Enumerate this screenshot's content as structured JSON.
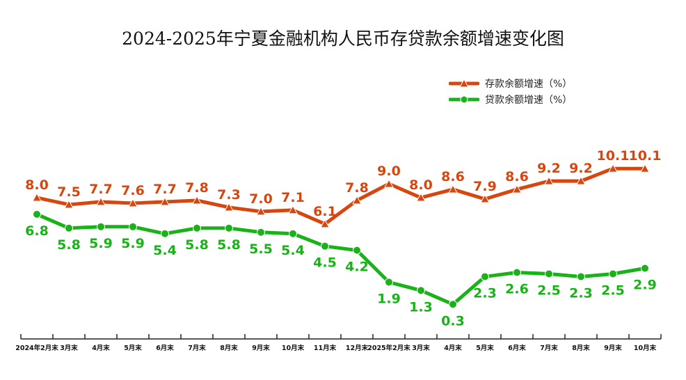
{
  "chart_data": {
    "type": "line",
    "title": "2024-2025年宁夏金融机构人民币存贷款余额增速变化图",
    "categories": [
      "2024年2月末",
      "3月末",
      "4月末",
      "5月末",
      "6月末",
      "7月末",
      "8月末",
      "9月末",
      "10月末",
      "11月末",
      "12月末",
      "2025年2月末",
      "3月末",
      "4月末",
      "5月末",
      "6月末",
      "7月末",
      "8月末",
      "9月末",
      "10月末"
    ],
    "series": [
      {
        "name": "存款余额增速（%）",
        "color": "#d8460f",
        "marker": "triangle",
        "label_position": "above",
        "values": [
          8.0,
          7.5,
          7.7,
          7.6,
          7.7,
          7.8,
          7.3,
          7.0,
          7.1,
          6.1,
          7.8,
          9.0,
          8.0,
          8.6,
          7.9,
          8.6,
          9.2,
          9.2,
          10.1,
          10.1
        ]
      },
      {
        "name": "贷款余额增速（%）",
        "color": "#19b319",
        "marker": "circle",
        "label_position": "below",
        "values": [
          6.8,
          5.8,
          5.9,
          5.9,
          5.4,
          5.8,
          5.8,
          5.5,
          5.4,
          4.5,
          4.2,
          1.9,
          1.3,
          0.3,
          2.3,
          2.6,
          2.5,
          2.3,
          2.5,
          2.9
        ]
      }
    ],
    "xlabel": "",
    "ylabel": "",
    "ylim": [
      -2.2,
      13.5
    ],
    "grid": false,
    "y_axis_visible": false,
    "legend": "top-right"
  }
}
